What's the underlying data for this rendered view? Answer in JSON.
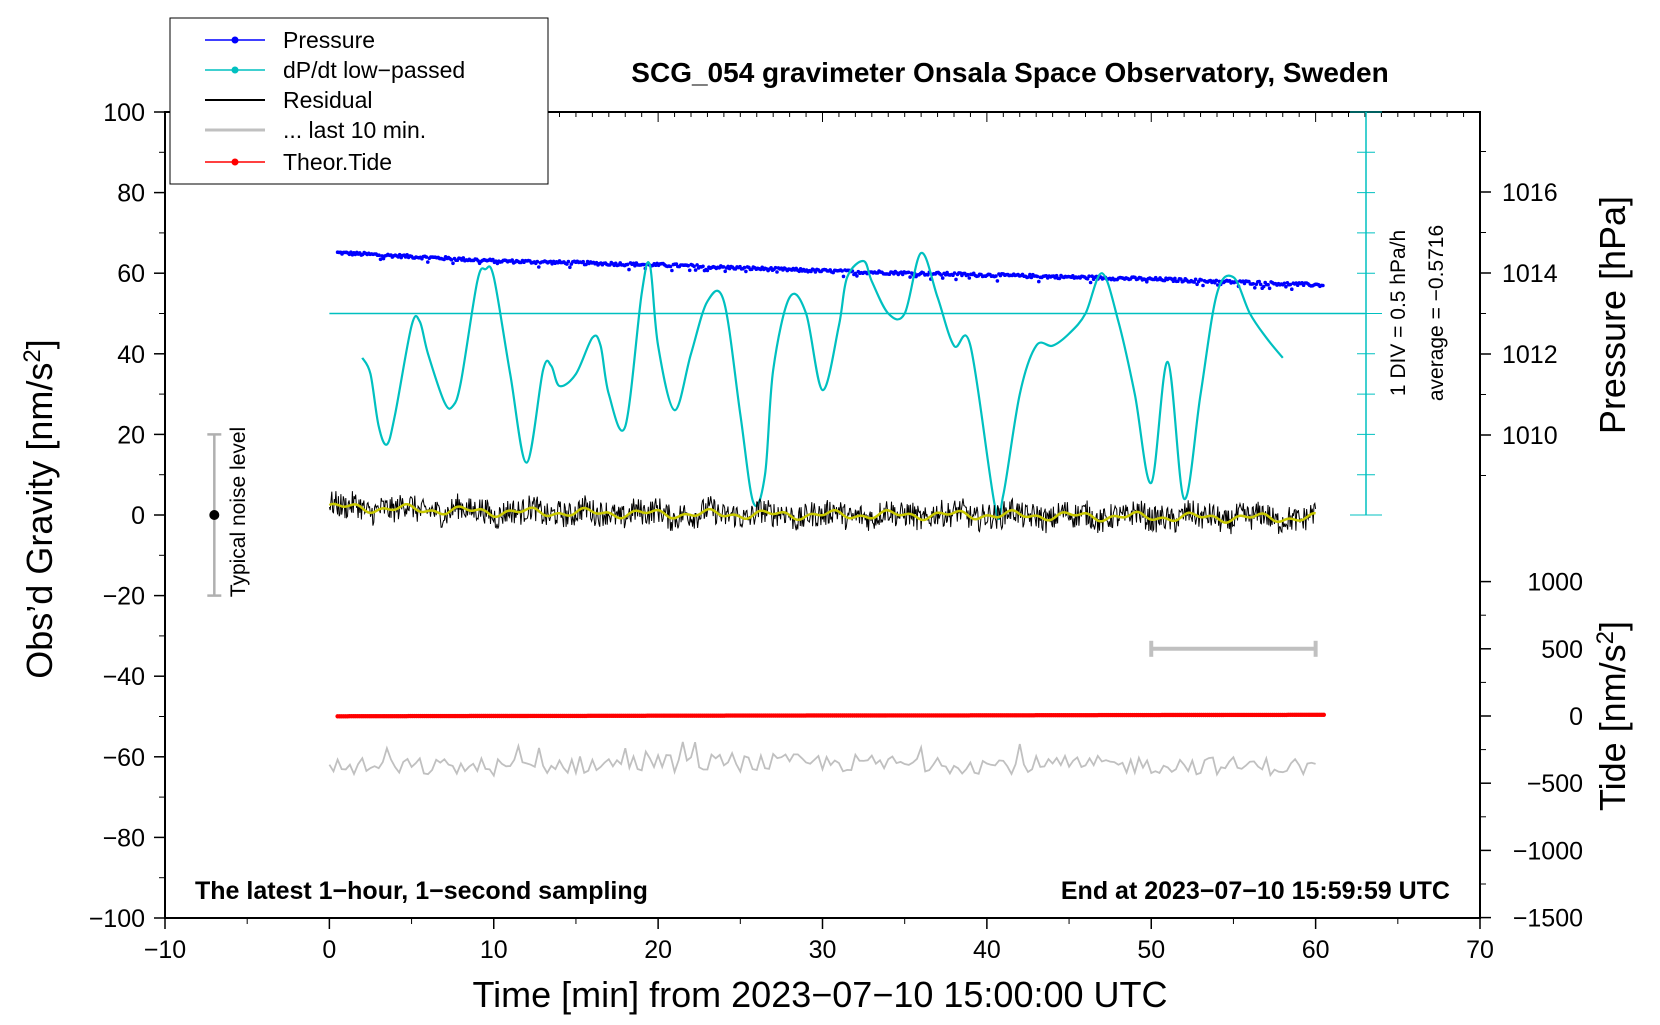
{
  "chart_data": {
    "type": "line",
    "title": "SCG_054 gravimeter Onsala Space Observatory, Sweden",
    "xlabel": "Time [min] from 2023−07−10 15:00:00 UTC",
    "xlim": [
      -10,
      70
    ],
    "xticks": [
      "−10",
      "0",
      "10",
      "20",
      "30",
      "40",
      "50",
      "60",
      "70"
    ],
    "left_axis": {
      "label_main": "Obs’d Gravity [nm/s",
      "label_sup": "2",
      "label_end": "]",
      "ylim": [
        -100,
        100
      ],
      "ticks": [
        "100",
        "80",
        "60",
        "40",
        "20",
        "0",
        "−20",
        "−40",
        "−60",
        "−80",
        "−100"
      ]
    },
    "pressure_axis": {
      "label": "Pressure [hPa]",
      "range": [
        1008,
        1018
      ],
      "ticks": [
        "1016",
        "1014",
        "1012",
        "1010"
      ]
    },
    "tide_axis": {
      "label_main": "Tide [nm/s",
      "label_sup": "2",
      "label_end": "]",
      "range": [
        -1500,
        1000
      ],
      "ticks": [
        "1000",
        "500",
        "0",
        "−500",
        "−1000",
        "−1500"
      ]
    },
    "dpdt_scale": {
      "div_label": "1 DIV = 0.5 hPa/h",
      "average_label": "average = −0.5716"
    },
    "legend": [
      "Pressure",
      "dP/dt low−passed",
      "Residual",
      "... last 10 min.",
      "Theor.Tide"
    ],
    "notes": {
      "bottom_left": "The latest 1−hour, 1−second sampling",
      "bottom_right": "End at 2023−07−10 15:59:59 UTC",
      "noise": "Typical noise level"
    },
    "series": [
      {
        "name": "Pressure",
        "axis": "pressure_hPa",
        "x": [
          0.5,
          10,
          20,
          30,
          40,
          50,
          60.5
        ],
        "values": [
          1014.5,
          1014.3,
          1014.2,
          1014.05,
          1013.95,
          1013.85,
          1013.7
        ]
      },
      {
        "name": "dP/dt low−passed",
        "axis": "gravity_scale_nm_s2",
        "x": [
          2,
          2.5,
          3,
          3.5,
          4,
          5,
          5.5,
          6,
          7,
          7.5,
          8,
          9,
          9.5,
          10,
          11,
          12,
          13,
          13.5,
          14,
          15,
          16,
          16.5,
          17,
          18,
          19,
          19.5,
          20,
          21,
          22,
          23,
          24,
          25,
          25.8,
          26.5,
          27,
          28,
          29,
          30,
          31,
          31.5,
          32.5,
          33,
          34,
          35,
          36,
          37,
          38,
          39,
          40.5,
          41,
          42,
          43,
          44,
          45,
          46,
          47,
          48,
          49,
          50,
          51,
          52,
          53,
          54,
          55,
          56,
          57,
          58
        ],
        "values": [
          39,
          35,
          22,
          17.5,
          25,
          47,
          48,
          40,
          28,
          27,
          33,
          58,
          61,
          59,
          35,
          13,
          36,
          37,
          32,
          35,
          44,
          42,
          30,
          22,
          55,
          62,
          42,
          26,
          40,
          53,
          53,
          25,
          3,
          10,
          36,
          54,
          50,
          31,
          47,
          59,
          63,
          58,
          50,
          50,
          65,
          54,
          42,
          42,
          2,
          5,
          30,
          42,
          42,
          45,
          50,
          60,
          48,
          30,
          8,
          38,
          4,
          30,
          55,
          59,
          50,
          44,
          39
        ]
      },
      {
        "name": "Residual",
        "axis": "gravity_nm_s2",
        "x": [
          0,
          10,
          20,
          30,
          40,
          50,
          60
        ],
        "values": [
          2,
          0.8,
          0.3,
          0,
          0,
          -0.5,
          -0.8
        ]
      },
      {
        "name": "... last 10 min.",
        "axis": "gravity_nm_s2",
        "x": [
          0,
          10,
          20,
          30,
          40,
          50,
          60
        ],
        "values": [
          -62.5,
          -62.5,
          -61.5,
          -61.5,
          -62,
          -62,
          -62.5
        ]
      },
      {
        "name": "Theor.Tide",
        "axis": "tide_nm_s2",
        "x": [
          0.5,
          20,
          40,
          60.5
        ],
        "values": [
          -2,
          2,
          5,
          9
        ]
      }
    ],
    "noise_bar": {
      "x": -7,
      "center": 0,
      "half_range": 20
    },
    "last10_bar": {
      "x_start": 50,
      "x_end": 60,
      "tide_value": 500
    },
    "colors": {
      "pressure": "#0000ff",
      "dpdt": "#00c0c0",
      "residual": "#000000",
      "residual_smooth": "#c8c800",
      "last10": "#c0c0c0",
      "tide": "#ff0000"
    }
  }
}
